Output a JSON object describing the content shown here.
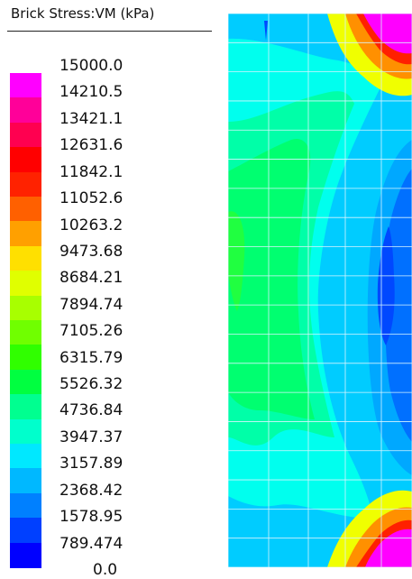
{
  "legend": {
    "title": "Brick Stress:VM  (kPa)",
    "values": [
      "15000.0",
      "14210.5",
      "13421.1",
      "12631.6",
      "11842.1",
      "11052.6",
      "10263.2",
      "9473.68",
      "8684.21",
      "7894.74",
      "7105.26",
      "6315.79",
      "5526.32",
      "4736.84",
      "3947.37",
      "3157.89",
      "2368.42",
      "1578.95",
      "789.474",
      "0.0"
    ],
    "colors": [
      "#ff00ff",
      "#ff0099",
      "#ff0050",
      "#ff0000",
      "#ff2200",
      "#ff6000",
      "#ffa000",
      "#ffe000",
      "#e0ff00",
      "#a8ff00",
      "#70ff00",
      "#30ff00",
      "#00ff40",
      "#00ff90",
      "#00ffcc",
      "#00e8ff",
      "#00b8ff",
      "#0080ff",
      "#0040ff",
      "#0000ff"
    ]
  },
  "contour": {
    "colors": {
      "background": "#00ccff",
      "light_blue": "#00a8ff",
      "blue": "#0070ff",
      "dark_blue": "#0048ff",
      "cyan": "#00ffee",
      "aqua_green": "#00ffa8",
      "green": "#00ff70",
      "bright_green": "#20ff40",
      "yellow": "#f0ff00",
      "orange": "#ff9000",
      "red": "#ff2000",
      "magenta": "#ff00ff",
      "mesh": "#d8f4ff"
    }
  }
}
